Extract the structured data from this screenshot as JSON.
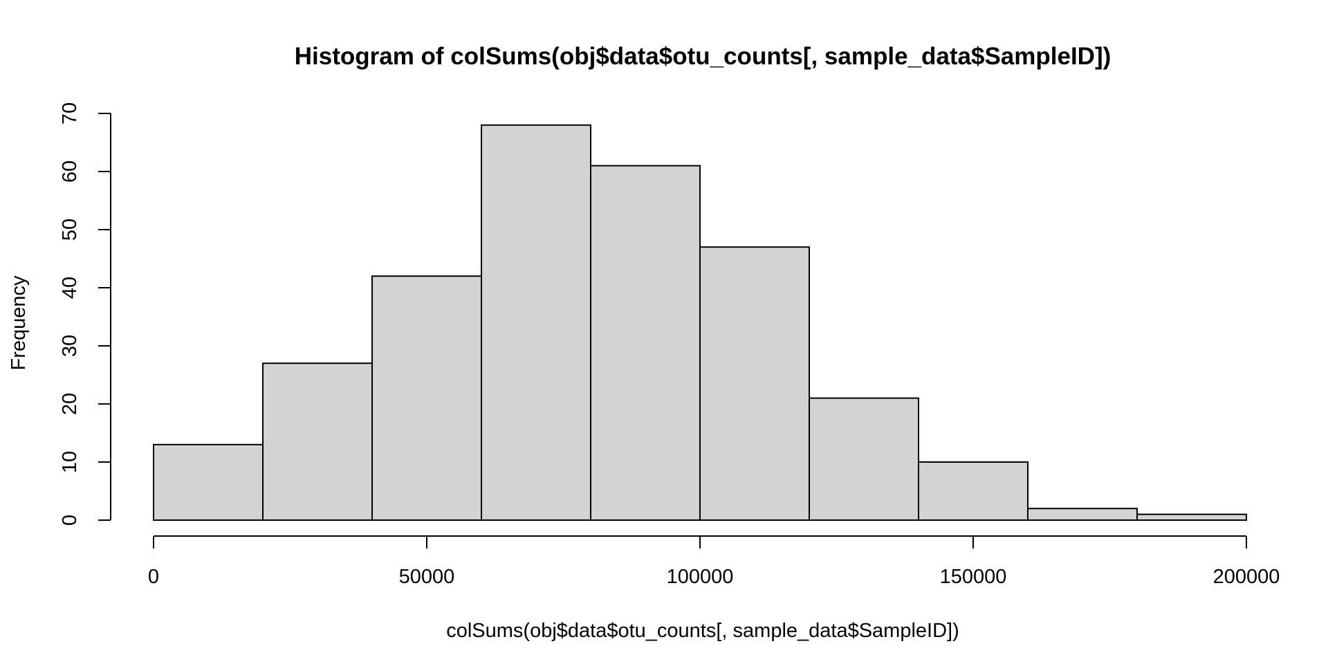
{
  "chart_data": {
    "type": "bar",
    "title": "Histogram of colSums(obj$data$otu_counts[, sample_data$SampleID])",
    "xlabel": "colSums(obj$data$otu_counts[, sample_data$SampleID])",
    "ylabel": "Frequency",
    "bin_edges": [
      0,
      20000,
      40000,
      60000,
      80000,
      100000,
      120000,
      140000,
      160000,
      180000,
      200000
    ],
    "values": [
      13,
      27,
      42,
      68,
      61,
      47,
      21,
      10,
      2,
      1
    ],
    "xlim": [
      0,
      200000
    ],
    "ylim": [
      0,
      70
    ],
    "x_ticks": [
      0,
      50000,
      100000,
      150000,
      200000
    ],
    "x_tick_labels": [
      "0",
      "50000",
      "100000",
      "150000",
      "200000"
    ],
    "y_ticks": [
      0,
      10,
      20,
      30,
      40,
      50,
      60,
      70
    ],
    "y_tick_labels": [
      "0",
      "10",
      "20",
      "30",
      "40",
      "50",
      "60",
      "70"
    ],
    "grid": false,
    "bar_fill": "#d3d3d3",
    "bar_stroke": "#000000"
  }
}
